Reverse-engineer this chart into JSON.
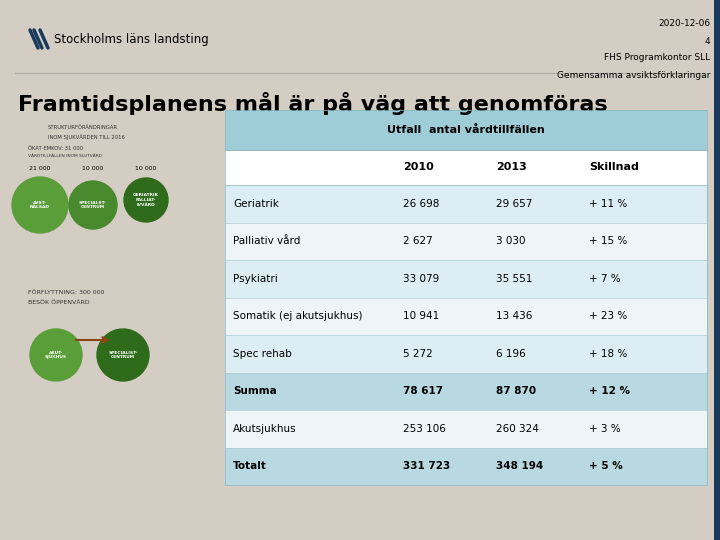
{
  "bg_color": "#d4cdc3",
  "title_text": "Framtidsplanens mål är på väg att genomföras",
  "title_fontsize": 16,
  "date_text": "2020-12-06",
  "page_text": "4",
  "program_text": "FHS Programkontor SLL",
  "gem_text": "Gemensamma avsiktsförklaringar",
  "bar_color1": "#1a6080",
  "bar_color2": "#4a9dbf",
  "table_header_bg": "#9ecdd8",
  "table_subheader_bg": "#c8e4eb",
  "table_row_light": "#dceef3",
  "table_row_white": "#eaf4f7",
  "table_summa_bg": "#b8d8e2",
  "table_totalt_bg": "#b8d8e2",
  "col_header": "Utfall  antal vårdtillfällen",
  "col_2010": "2010",
  "col_2013": "2013",
  "col_skillnad": "Skillnad",
  "rows": [
    {
      "label": "Geriatrik",
      "v2010": "26 698",
      "v2013": "29 657",
      "skillnad": "+ 11 %",
      "bold": false,
      "shade": "light"
    },
    {
      "label": "Palliativ vård",
      "v2010": "2 627",
      "v2013": "3 030",
      "skillnad": "+ 15 %",
      "bold": false,
      "shade": "white"
    },
    {
      "label": "Psykiatri",
      "v2010": "33 079",
      "v2013": "35 551",
      "skillnad": "+ 7 %",
      "bold": false,
      "shade": "light"
    },
    {
      "label": "Somatik (ej akutsjukhus)",
      "v2010": "10 941",
      "v2013": "13 436",
      "skillnad": "+ 23 %",
      "bold": false,
      "shade": "white"
    },
    {
      "label": "Spec rehab",
      "v2010": "5 272",
      "v2013": "6 196",
      "skillnad": "+ 18 %",
      "bold": false,
      "shade": "light"
    },
    {
      "label": "Summa",
      "v2010": "78 617",
      "v2013": "87 870",
      "skillnad": "+ 12 %",
      "bold": true,
      "shade": "summa"
    },
    {
      "label": "Akutsjukhus",
      "v2010": "253 106",
      "v2013": "260 324",
      "skillnad": "+ 3 %",
      "bold": false,
      "shade": "white"
    },
    {
      "label": "Totalt",
      "v2010": "331 723",
      "v2013": "348 194",
      "skillnad": "+ 5 %",
      "bold": true,
      "shade": "summa"
    }
  ],
  "sll_text": "Stockholms läns landsting",
  "logo_color": "#1a3a5c"
}
